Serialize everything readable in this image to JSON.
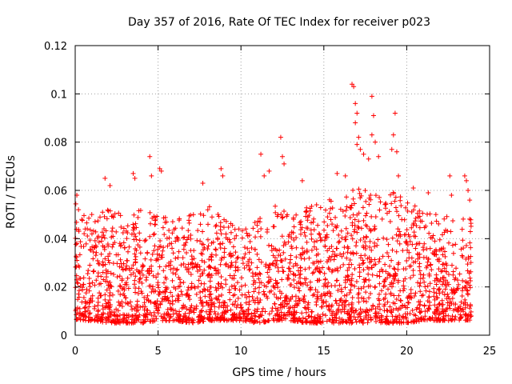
{
  "chart_data": {
    "type": "scatter",
    "title": "Day 357 of 2016, Rate Of TEC Index for receiver p023",
    "xlabel": "GPS time / hours",
    "ylabel": "ROTI / TECUs",
    "xlim": [
      0,
      25
    ],
    "ylim": [
      0,
      0.12
    ],
    "xticks": [
      0,
      5,
      10,
      15,
      20,
      25
    ],
    "yticks": [
      0,
      0.02,
      0.04,
      0.06,
      0.08,
      0.1,
      0.12
    ],
    "xtick_labels": [
      "0",
      "5",
      "10",
      "15",
      "20",
      "25"
    ],
    "ytick_labels": [
      "0",
      "0.02",
      "0.04",
      "0.06",
      "0.08",
      "0.1",
      "0.12"
    ],
    "grid": true,
    "marker": "+",
    "color": "#ff0000",
    "x_range_of_data": [
      0,
      23.9
    ],
    "series": [
      {
        "name": "ROTI",
        "points": [
          [
            0.1,
            0.058
          ],
          [
            0.2,
            0.052
          ],
          [
            0.4,
            0.048
          ],
          [
            0.6,
            0.044
          ],
          [
            1.0,
            0.05
          ],
          [
            1.8,
            0.065
          ],
          [
            2.1,
            0.062
          ],
          [
            3.5,
            0.067
          ],
          [
            3.6,
            0.065
          ],
          [
            4.5,
            0.074
          ],
          [
            4.6,
            0.066
          ],
          [
            5.1,
            0.069
          ],
          [
            5.2,
            0.068
          ],
          [
            7.7,
            0.063
          ],
          [
            8.8,
            0.069
          ],
          [
            8.9,
            0.066
          ],
          [
            11.2,
            0.075
          ],
          [
            11.4,
            0.066
          ],
          [
            11.7,
            0.068
          ],
          [
            12.4,
            0.082
          ],
          [
            12.5,
            0.074
          ],
          [
            12.6,
            0.071
          ],
          [
            13.7,
            0.064
          ],
          [
            15.8,
            0.067
          ],
          [
            16.3,
            0.066
          ],
          [
            16.7,
            0.104
          ],
          [
            16.8,
            0.103
          ],
          [
            16.9,
            0.096
          ],
          [
            17.0,
            0.092
          ],
          [
            16.9,
            0.088
          ],
          [
            17.1,
            0.082
          ],
          [
            17.0,
            0.079
          ],
          [
            17.2,
            0.077
          ],
          [
            17.4,
            0.075
          ],
          [
            17.7,
            0.073
          ],
          [
            17.9,
            0.099
          ],
          [
            18.0,
            0.091
          ],
          [
            17.9,
            0.083
          ],
          [
            18.1,
            0.08
          ],
          [
            18.3,
            0.074
          ],
          [
            19.3,
            0.092
          ],
          [
            19.2,
            0.083
          ],
          [
            19.1,
            0.077
          ],
          [
            19.4,
            0.076
          ],
          [
            19.5,
            0.066
          ],
          [
            20.4,
            0.061
          ],
          [
            21.3,
            0.059
          ],
          [
            22.6,
            0.066
          ],
          [
            22.7,
            0.058
          ],
          [
            23.5,
            0.066
          ],
          [
            23.6,
            0.064
          ],
          [
            23.7,
            0.06
          ],
          [
            23.8,
            0.056
          ]
        ]
      }
    ],
    "density_profile": {
      "description": "dense band of + markers across the whole day",
      "hours": [
        0,
        1,
        2,
        3,
        4,
        5,
        6,
        7,
        8,
        9,
        10,
        11,
        12,
        13,
        14,
        15,
        16,
        17,
        18,
        19,
        20,
        21,
        22,
        23,
        23.9
      ],
      "upper": [
        0.055,
        0.05,
        0.052,
        0.05,
        0.052,
        0.05,
        0.048,
        0.05,
        0.054,
        0.048,
        0.044,
        0.05,
        0.054,
        0.05,
        0.054,
        0.056,
        0.058,
        0.062,
        0.058,
        0.06,
        0.056,
        0.052,
        0.05,
        0.048,
        0.05
      ],
      "lower": [
        0.006,
        0.006,
        0.005,
        0.005,
        0.005,
        0.006,
        0.006,
        0.005,
        0.006,
        0.006,
        0.006,
        0.005,
        0.006,
        0.006,
        0.005,
        0.005,
        0.005,
        0.005,
        0.005,
        0.005,
        0.005,
        0.006,
        0.006,
        0.006,
        0.006
      ]
    }
  }
}
